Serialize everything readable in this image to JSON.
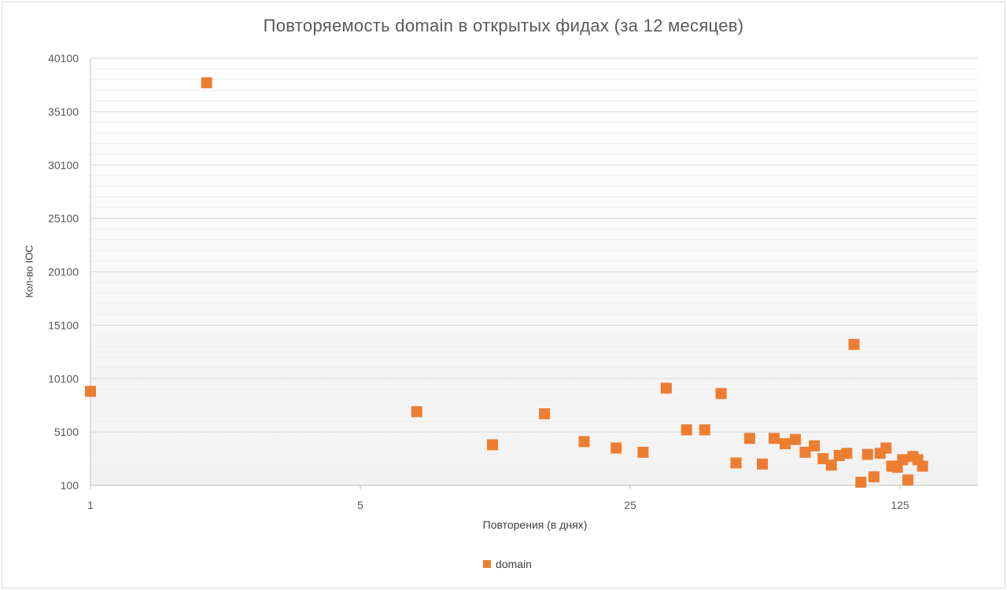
{
  "chart_data": {
    "type": "scatter",
    "title": "Повторяемость domain в открытых фидах (за 12 месяцев)",
    "xlabel": "Повторения (в днях)",
    "ylabel": "Кол-во IOC",
    "x_scale": "log5",
    "xlim": [
      1,
      180
    ],
    "ylim": [
      100,
      40100
    ],
    "x_ticks": [
      1,
      5,
      25,
      125
    ],
    "x_tick_labels": [
      "1",
      "5",
      "25",
      "125"
    ],
    "y_ticks": [
      100,
      5100,
      10100,
      15100,
      20100,
      25100,
      30100,
      35100,
      40100
    ],
    "y_tick_labels": [
      "100",
      "5100",
      "10100",
      "15100",
      "20100",
      "25100",
      "30100",
      "35100",
      "40100"
    ],
    "grid": true,
    "legend_position": "bottom",
    "series": [
      {
        "name": "domain",
        "color": "#ed7d31",
        "marker": "square",
        "points": [
          {
            "x": 1,
            "y": 8900
          },
          {
            "x": 2,
            "y": 37800
          },
          {
            "x": 7,
            "y": 7000
          },
          {
            "x": 11,
            "y": 3900
          },
          {
            "x": 15,
            "y": 6800
          },
          {
            "x": 19,
            "y": 4200
          },
          {
            "x": 23,
            "y": 3600
          },
          {
            "x": 27,
            "y": 3200
          },
          {
            "x": 31,
            "y": 9200
          },
          {
            "x": 35,
            "y": 5300
          },
          {
            "x": 39,
            "y": 5300
          },
          {
            "x": 43,
            "y": 8700
          },
          {
            "x": 47,
            "y": 2200
          },
          {
            "x": 51,
            "y": 4500
          },
          {
            "x": 55,
            "y": 2100
          },
          {
            "x": 59,
            "y": 4500
          },
          {
            "x": 63,
            "y": 4000
          },
          {
            "x": 67,
            "y": 4400
          },
          {
            "x": 71,
            "y": 3200
          },
          {
            "x": 75,
            "y": 3800
          },
          {
            "x": 79,
            "y": 2600
          },
          {
            "x": 83,
            "y": 2000
          },
          {
            "x": 87,
            "y": 2900
          },
          {
            "x": 91,
            "y": 3100
          },
          {
            "x": 95,
            "y": 13300
          },
          {
            "x": 99,
            "y": 400
          },
          {
            "x": 103,
            "y": 3000
          },
          {
            "x": 107,
            "y": 900
          },
          {
            "x": 111,
            "y": 3100
          },
          {
            "x": 115,
            "y": 3600
          },
          {
            "x": 119,
            "y": 1900
          },
          {
            "x": 123,
            "y": 1800
          },
          {
            "x": 127,
            "y": 2500
          },
          {
            "x": 131,
            "y": 600
          },
          {
            "x": 135,
            "y": 2800
          },
          {
            "x": 139,
            "y": 2500
          },
          {
            "x": 143,
            "y": 1900
          }
        ]
      }
    ]
  }
}
